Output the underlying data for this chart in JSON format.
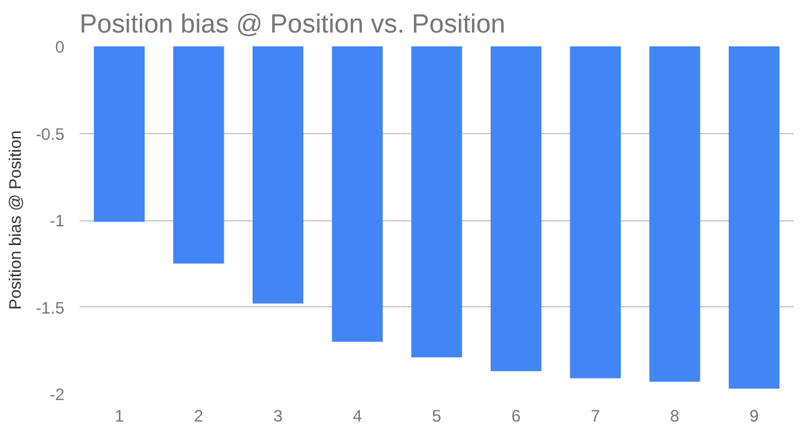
{
  "chart_data": {
    "type": "bar",
    "title": "Position bias @ Position vs. Position",
    "ylabel": "Position bias @ Position",
    "categories": [
      "1",
      "2",
      "3",
      "4",
      "5",
      "6",
      "7",
      "8",
      "9"
    ],
    "values": [
      -1.01,
      -1.25,
      -1.48,
      -1.7,
      -1.79,
      -1.87,
      -1.91,
      -1.93,
      -1.97
    ],
    "color": "#4285f4",
    "ylim": [
      -2,
      0
    ],
    "yticks": [
      {
        "value": -2,
        "label": "-2"
      },
      {
        "value": -1.5,
        "label": "-1.5"
      },
      {
        "value": -1,
        "label": "-1"
      },
      {
        "value": -0.5,
        "label": "-0.5"
      },
      {
        "value": 0,
        "label": "0"
      }
    ],
    "grid": "y"
  }
}
